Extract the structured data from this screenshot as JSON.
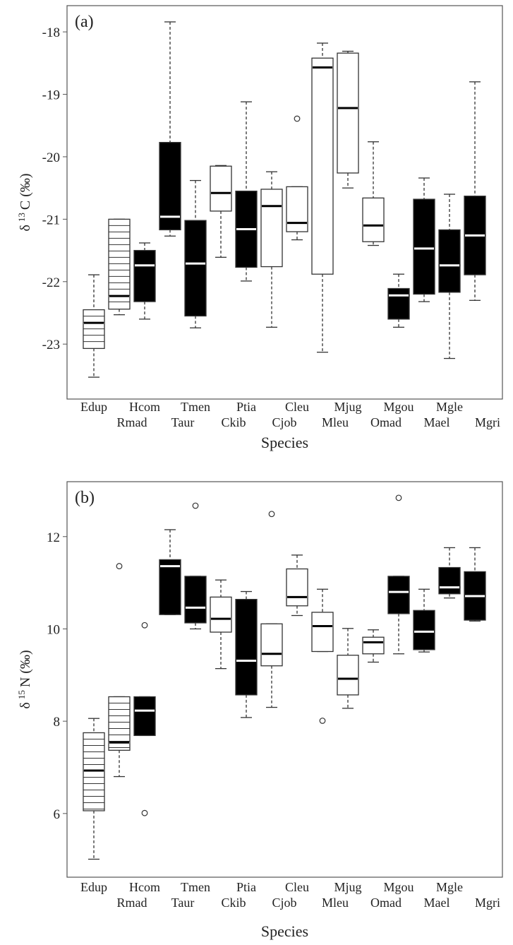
{
  "chart_data": [
    {
      "type": "box",
      "panel_label": "(a)",
      "xlabel": "Species",
      "ylabel_prefix": "δ",
      "ylabel_sup": "13",
      "ylabel_suffix": "C (‰)",
      "ylim": [
        -23.88,
        -17.58
      ],
      "yticks": [
        -18,
        -19,
        -20,
        -21,
        -22,
        -23
      ],
      "ytick_labels": [
        "-18",
        "-19",
        "-20",
        "-21",
        "-22",
        "-23"
      ],
      "grid": false,
      "categories": [
        "Edup",
        "Rmad",
        "Hcom",
        "Taur",
        "Tmen",
        "Ckib",
        "Ptia",
        "Cjob",
        "Cleu",
        "Mleu",
        "Mjug",
        "Omad",
        "Mgou",
        "Mael",
        "Mgle",
        "Mgri"
      ],
      "fills": [
        "hatched",
        "hatched",
        "black",
        "black",
        "black",
        "white",
        "black",
        "white",
        "white",
        "white",
        "white",
        "white",
        "black",
        "black",
        "black",
        "black"
      ],
      "boxes": [
        {
          "whisker_low": -23.53,
          "q1": -23.07,
          "median": -22.66,
          "q3": -22.45,
          "whisker_high": -21.89,
          "outliers": []
        },
        {
          "whisker_low": -22.53,
          "q1": -22.44,
          "median": -22.23,
          "q3": -21.0,
          "whisker_high": -21.0,
          "outliers": []
        },
        {
          "whisker_low": -22.6,
          "q1": -22.32,
          "median": -21.74,
          "q3": -21.5,
          "whisker_high": -21.38,
          "outliers": []
        },
        {
          "whisker_low": -21.27,
          "q1": -21.17,
          "median": -20.96,
          "q3": -19.77,
          "whisker_high": -17.84,
          "outliers": []
        },
        {
          "whisker_low": -22.74,
          "q1": -22.55,
          "median": -21.71,
          "q3": -21.02,
          "whisker_high": -20.38,
          "outliers": []
        },
        {
          "whisker_low": -21.61,
          "q1": -20.87,
          "median": -20.58,
          "q3": -20.15,
          "whisker_high": -20.14,
          "outliers": []
        },
        {
          "whisker_low": -21.99,
          "q1": -21.77,
          "median": -21.16,
          "q3": -20.55,
          "whisker_high": -19.12,
          "outliers": []
        },
        {
          "whisker_low": -22.73,
          "q1": -21.76,
          "median": -20.79,
          "q3": -20.52,
          "whisker_high": -20.24,
          "outliers": []
        },
        {
          "whisker_low": -21.33,
          "q1": -21.2,
          "median": -21.06,
          "q3": -20.48,
          "whisker_high": -20.48,
          "outliers": [
            -19.39
          ]
        },
        {
          "whisker_low": -23.13,
          "q1": -21.88,
          "median": -18.57,
          "q3": -18.42,
          "whisker_high": -18.18,
          "outliers": []
        },
        {
          "whisker_low": -20.5,
          "q1": -20.26,
          "median": -19.22,
          "q3": -18.34,
          "whisker_high": -18.31,
          "outliers": []
        },
        {
          "whisker_low": -21.42,
          "q1": -21.36,
          "median": -21.1,
          "q3": -20.66,
          "whisker_high": -19.76,
          "outliers": []
        },
        {
          "whisker_low": -22.73,
          "q1": -22.6,
          "median": -22.22,
          "q3": -22.11,
          "whisker_high": -21.88,
          "outliers": []
        },
        {
          "whisker_low": -22.32,
          "q1": -22.2,
          "median": -21.47,
          "q3": -20.68,
          "whisker_high": -20.34,
          "outliers": []
        },
        {
          "whisker_low": -23.23,
          "q1": -22.17,
          "median": -21.74,
          "q3": -21.17,
          "whisker_high": -20.6,
          "outliers": []
        },
        {
          "whisker_low": -22.3,
          "q1": -21.89,
          "median": -21.26,
          "q3": -20.63,
          "whisker_high": -18.8,
          "outliers": []
        }
      ]
    },
    {
      "type": "box",
      "panel_label": "(b)",
      "xlabel": "Species",
      "ylabel_prefix": "δ",
      "ylabel_sup": "15",
      "ylabel_suffix": "N (‰)",
      "ylim": [
        4.62,
        13.19
      ],
      "yticks": [
        12,
        10,
        8,
        6
      ],
      "ytick_labels": [
        "12",
        "10",
        "8",
        "6"
      ],
      "grid": false,
      "categories": [
        "Edup",
        "Rmad",
        "Hcom",
        "Taur",
        "Tmen",
        "Ckib",
        "Ptia",
        "Cjob",
        "Cleu",
        "Mleu",
        "Mjug",
        "Omad",
        "Mgou",
        "Mael",
        "Mgle",
        "Mgri"
      ],
      "fills": [
        "hatched",
        "hatched",
        "black",
        "black",
        "black",
        "white",
        "black",
        "white",
        "white",
        "white",
        "white",
        "white",
        "black",
        "black",
        "black",
        "black"
      ],
      "boxes": [
        {
          "whisker_low": 5.01,
          "q1": 6.06,
          "median": 6.93,
          "q3": 7.75,
          "whisker_high": 8.06,
          "outliers": []
        },
        {
          "whisker_low": 6.8,
          "q1": 7.37,
          "median": 7.54,
          "q3": 8.53,
          "whisker_high": 8.53,
          "outliers": [
            11.36
          ]
        },
        {
          "whisker_low": 7.69,
          "q1": 7.69,
          "median": 8.23,
          "q3": 8.53,
          "whisker_high": 8.53,
          "outliers": [
            10.08,
            6.01
          ]
        },
        {
          "whisker_low": 10.31,
          "q1": 10.31,
          "median": 11.36,
          "q3": 11.5,
          "whisker_high": 12.15,
          "outliers": []
        },
        {
          "whisker_low": 10.0,
          "q1": 10.13,
          "median": 10.46,
          "q3": 11.14,
          "whisker_high": 11.14,
          "outliers": [
            12.67
          ]
        },
        {
          "whisker_low": 9.14,
          "q1": 9.93,
          "median": 10.22,
          "q3": 10.69,
          "whisker_high": 11.06,
          "outliers": []
        },
        {
          "whisker_low": 8.08,
          "q1": 8.57,
          "median": 9.31,
          "q3": 10.64,
          "whisker_high": 10.81,
          "outliers": []
        },
        {
          "whisker_low": 8.3,
          "q1": 9.2,
          "median": 9.46,
          "q3": 10.11,
          "whisker_high": 10.11,
          "outliers": [
            12.49
          ]
        },
        {
          "whisker_low": 10.29,
          "q1": 10.5,
          "median": 10.69,
          "q3": 11.3,
          "whisker_high": 11.6,
          "outliers": []
        },
        {
          "whisker_low": 9.51,
          "q1": 9.51,
          "median": 10.06,
          "q3": 10.36,
          "whisker_high": 10.86,
          "outliers": [
            8.01
          ]
        },
        {
          "whisker_low": 8.28,
          "q1": 8.57,
          "median": 8.92,
          "q3": 9.43,
          "whisker_high": 10.01,
          "outliers": []
        },
        {
          "whisker_low": 9.28,
          "q1": 9.46,
          "median": 9.71,
          "q3": 9.82,
          "whisker_high": 9.98,
          "outliers": []
        },
        {
          "whisker_low": 9.46,
          "q1": 10.33,
          "median": 10.8,
          "q3": 11.14,
          "whisker_high": 11.14,
          "outliers": [
            12.84
          ]
        },
        {
          "whisker_low": 9.5,
          "q1": 9.55,
          "median": 9.94,
          "q3": 10.4,
          "whisker_high": 10.86,
          "outliers": []
        },
        {
          "whisker_low": 10.67,
          "q1": 10.76,
          "median": 10.9,
          "q3": 11.33,
          "whisker_high": 11.76,
          "outliers": []
        },
        {
          "whisker_low": 10.17,
          "q1": 10.19,
          "median": 10.71,
          "q3": 11.24,
          "whisker_high": 11.76,
          "outliers": []
        }
      ]
    }
  ]
}
